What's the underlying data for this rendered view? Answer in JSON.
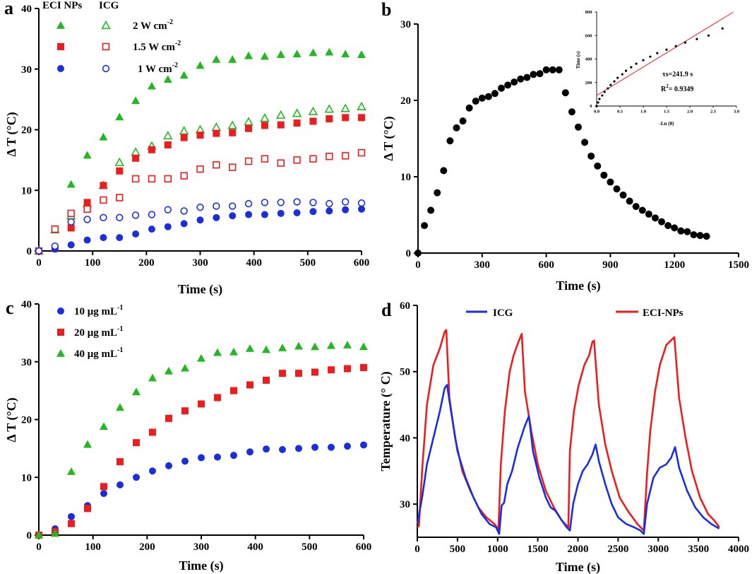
{
  "chart_data": [
    {
      "type": "scatter",
      "panel": "a",
      "xlabel": "Time (s)",
      "ylabel": "Δ T (°C)",
      "xlim": [
        0,
        600
      ],
      "ylim": [
        0,
        40
      ],
      "xticks": [
        0,
        100,
        200,
        300,
        400,
        500,
        600
      ],
      "yticks": [
        0,
        10,
        20,
        30,
        40
      ],
      "legend_headers": [
        "ECI NPs",
        "ICG"
      ],
      "legend_rows": [
        "2 W cm",
        "1.5 W cm",
        "1 W cm"
      ],
      "legend_sup": "-2",
      "x": [
        0,
        30,
        60,
        90,
        120,
        150,
        180,
        210,
        240,
        270,
        300,
        330,
        360,
        390,
        420,
        450,
        480,
        510,
        540,
        570,
        600
      ],
      "series": [
        {
          "name": "ECI NPs 2 W cm-2",
          "marker": "triangle",
          "filled": true,
          "color": "#22b822",
          "values": [
            0,
            3.6,
            11.0,
            15.8,
            18.8,
            22.1,
            24.8,
            27.2,
            28.3,
            29.0,
            30.6,
            31.6,
            31.6,
            32.2,
            32.1,
            32.4,
            32.5,
            32.7,
            32.8,
            32.5,
            32.4
          ]
        },
        {
          "name": "ICG 2 W cm-2",
          "marker": "triangle",
          "filled": false,
          "color": "#22b822",
          "values": [
            0,
            3.5,
            5.8,
            7.8,
            10.8,
            14.6,
            16.3,
            17.3,
            19.0,
            19.8,
            20.0,
            20.4,
            20.7,
            21.3,
            21.9,
            22.4,
            22.7,
            23.0,
            23.4,
            23.5,
            23.8
          ]
        },
        {
          "name": "ECI NPs 1.5 W cm-2",
          "marker": "square",
          "filled": true,
          "color": "#ee1c1c",
          "values": [
            0,
            0.4,
            3.8,
            8.0,
            10.8,
            13.2,
            15.3,
            16.7,
            17.5,
            18.7,
            19.1,
            19.4,
            19.5,
            20.2,
            20.7,
            20.8,
            21.1,
            21.4,
            21.8,
            22.0,
            22.0
          ]
        },
        {
          "name": "ICG 1.5 W cm-2",
          "marker": "square",
          "filled": false,
          "color": "#ee1c1c",
          "values": [
            0,
            3.6,
            6.2,
            6.9,
            8.4,
            8.8,
            11.9,
            11.9,
            11.9,
            12.4,
            13.5,
            14.2,
            13.8,
            14.8,
            15.2,
            14.5,
            15.0,
            15.2,
            15.6,
            15.7,
            16.2
          ]
        },
        {
          "name": "ECI NPs 1 W cm-2",
          "marker": "circle",
          "filled": true,
          "color": "#1a2ee0",
          "values": [
            0,
            0.3,
            1.0,
            1.8,
            2.2,
            2.2,
            2.8,
            3.6,
            4.0,
            4.5,
            5.1,
            5.5,
            5.8,
            6.0,
            6.0,
            6.2,
            6.3,
            6.5,
            6.6,
            6.8,
            6.9
          ]
        },
        {
          "name": "ICG 1 W cm-2",
          "marker": "circle",
          "filled": false,
          "color": "#1a2ee0",
          "values": [
            0,
            0.8,
            4.8,
            5.2,
            5.5,
            5.5,
            5.9,
            6.0,
            6.8,
            6.6,
            7.2,
            7.4,
            7.4,
            7.8,
            8.0,
            8.0,
            8.1,
            8.0,
            7.8,
            8.1,
            7.9
          ]
        }
      ]
    },
    {
      "type": "scatter",
      "panel": "b",
      "xlabel": "Time (s)",
      "ylabel": "Δ T (°C)",
      "xlim": [
        0,
        1500
      ],
      "ylim": [
        0,
        30
      ],
      "xticks": [
        0,
        300,
        600,
        900,
        1200,
        1500
      ],
      "yticks": [
        0,
        10,
        20,
        30
      ],
      "color": "#000000",
      "x": [
        0,
        30,
        60,
        90,
        120,
        150,
        180,
        210,
        240,
        270,
        300,
        330,
        360,
        390,
        420,
        450,
        480,
        510,
        540,
        570,
        600,
        630,
        660,
        690,
        720,
        750,
        780,
        810,
        840,
        870,
        900,
        930,
        960,
        990,
        1020,
        1050,
        1080,
        1110,
        1140,
        1170,
        1200,
        1230,
        1260,
        1290,
        1320,
        1350
      ],
      "values": [
        0,
        3.6,
        5.6,
        7.9,
        10.8,
        14.7,
        16.4,
        17.3,
        19.0,
        19.9,
        20.3,
        20.5,
        20.9,
        21.6,
        22.0,
        22.4,
        22.8,
        23.0,
        23.4,
        23.5,
        24.0,
        24.0,
        24.0,
        21.0,
        18.5,
        16.5,
        14.5,
        12.7,
        11.4,
        10.2,
        9.3,
        8.4,
        7.6,
        6.8,
        6.1,
        5.6,
        5.1,
        4.6,
        4.1,
        3.6,
        3.3,
        2.9,
        2.8,
        2.4,
        2.3,
        2.2
      ],
      "inset": {
        "xlabel": "-Ln (θ)",
        "ylabel": "Time (s)",
        "xlim": [
          0,
          3.0
        ],
        "ylim": [
          0,
          800
        ],
        "xticks": [
          "0.0",
          "0.5",
          "1.0",
          "1.5",
          "2.0",
          "2.5",
          "3.0"
        ],
        "yticks": [
          "0",
          "200",
          "400",
          "600",
          "800"
        ],
        "fit_line": {
          "intercept": 90,
          "slope": 241.9,
          "color": "#ee1c1c"
        },
        "x": [
          0.0,
          0.03,
          0.06,
          0.12,
          0.17,
          0.24,
          0.3,
          0.38,
          0.45,
          0.55,
          0.63,
          0.74,
          0.85,
          1.0,
          1.15,
          1.3,
          1.5,
          1.7,
          1.9,
          2.15,
          2.4,
          2.7
        ],
        "values": [
          0,
          30,
          60,
          90,
          120,
          150,
          180,
          210,
          240,
          270,
          300,
          330,
          360,
          390,
          420,
          450,
          480,
          510,
          540,
          570,
          600,
          660
        ],
        "annotation_tau": "τs=241.9 s",
        "annotation_r2": "R",
        "annotation_r2_sup": "2",
        "annotation_r2_value": "= 0.9349"
      }
    },
    {
      "type": "scatter",
      "panel": "c",
      "xlabel": "Time (s)",
      "ylabel": "Δ T (°C)",
      "xlim": [
        0,
        600
      ],
      "ylim": [
        0,
        40
      ],
      "xticks": [
        0,
        100,
        200,
        300,
        400,
        500,
        600
      ],
      "yticks": [
        0,
        10,
        20,
        30,
        40
      ],
      "x": [
        0,
        30,
        60,
        90,
        120,
        150,
        180,
        210,
        240,
        270,
        300,
        330,
        360,
        390,
        420,
        450,
        480,
        510,
        540,
        570,
        600
      ],
      "series": [
        {
          "name": "10 μg mL",
          "sup": "-1",
          "marker": "circle",
          "filled": true,
          "color": "#1a2ee0",
          "values": [
            0,
            1.1,
            3.2,
            5.1,
            7.2,
            8.7,
            10.0,
            11.1,
            12.0,
            12.8,
            13.4,
            13.5,
            13.8,
            14.4,
            14.9,
            14.8,
            15.0,
            15.2,
            15.2,
            15.4,
            15.6
          ]
        },
        {
          "name": "20 μg mL",
          "sup": "-1",
          "marker": "square",
          "filled": true,
          "color": "#ee1c1c",
          "values": [
            0,
            0.6,
            2.0,
            4.6,
            8.4,
            12.7,
            16.0,
            17.8,
            20.2,
            21.5,
            22.7,
            23.8,
            25.0,
            26.0,
            26.8,
            28.0,
            28.0,
            28.2,
            28.6,
            28.8,
            29.0
          ]
        },
        {
          "name": "40 μg mL",
          "sup": "-1",
          "marker": "triangle",
          "filled": true,
          "color": "#22b822",
          "values": [
            0,
            0.3,
            11.0,
            15.7,
            18.8,
            22.1,
            24.8,
            27.2,
            28.4,
            28.9,
            30.6,
            31.6,
            31.7,
            32.3,
            32.1,
            32.4,
            32.7,
            32.6,
            32.8,
            32.9,
            32.6
          ]
        }
      ]
    },
    {
      "type": "line",
      "panel": "d",
      "xlabel": "Time (s)",
      "ylabel": "Temperature (° C)",
      "xlim": [
        0,
        4000
      ],
      "ylim": [
        25,
        60
      ],
      "xticks": [
        0,
        500,
        1000,
        1500,
        2000,
        2500,
        3000,
        3500,
        4000
      ],
      "yticks": [
        30,
        40,
        50,
        60
      ],
      "series": [
        {
          "name": "ICG",
          "color": "#1a2ee0",
          "points": [
            [
              0,
              27
            ],
            [
              60,
              31
            ],
            [
              120,
              36
            ],
            [
              200,
              40
            ],
            [
              280,
              44
            ],
            [
              340,
              47.5
            ],
            [
              370,
              48
            ],
            [
              420,
              44
            ],
            [
              500,
              38
            ],
            [
              600,
              34
            ],
            [
              700,
              31
            ],
            [
              800,
              28.5
            ],
            [
              900,
              27
            ],
            [
              980,
              26.5
            ],
            [
              1020,
              25.5
            ],
            [
              1050,
              29.8
            ],
            [
              1080,
              30.2
            ],
            [
              1120,
              33
            ],
            [
              1180,
              35
            ],
            [
              1250,
              38.5
            ],
            [
              1330,
              41.5
            ],
            [
              1390,
              43.3
            ],
            [
              1440,
              38
            ],
            [
              1520,
              34
            ],
            [
              1600,
              31
            ],
            [
              1660,
              29.5
            ],
            [
              1720,
              29
            ],
            [
              1800,
              27.5
            ],
            [
              1860,
              26.5
            ],
            [
              1900,
              26
            ],
            [
              1940,
              30
            ],
            [
              2000,
              33
            ],
            [
              2060,
              35
            ],
            [
              2120,
              36
            ],
            [
              2180,
              37.5
            ],
            [
              2220,
              39
            ],
            [
              2260,
              36.5
            ],
            [
              2340,
              33
            ],
            [
              2420,
              30
            ],
            [
              2500,
              28
            ],
            [
              2600,
              27
            ],
            [
              2700,
              26.5
            ],
            [
              2780,
              26
            ],
            [
              2820,
              25.5
            ],
            [
              2860,
              30
            ],
            [
              2940,
              34
            ],
            [
              3020,
              35.5
            ],
            [
              3100,
              36
            ],
            [
              3160,
              37
            ],
            [
              3210,
              38.6
            ],
            [
              3260,
              35.5
            ],
            [
              3360,
              32
            ],
            [
              3460,
              29.5
            ],
            [
              3560,
              28
            ],
            [
              3660,
              27
            ],
            [
              3760,
              26.3
            ]
          ]
        },
        {
          "name": "ECI-NPs",
          "color": "#ee1c1c",
          "points": [
            [
              0,
              26.5
            ],
            [
              20,
              26.7
            ],
            [
              60,
              35
            ],
            [
              120,
              45
            ],
            [
              200,
              51
            ],
            [
              280,
              53.5
            ],
            [
              340,
              56
            ],
            [
              360,
              56.3
            ],
            [
              400,
              46
            ],
            [
              470,
              40
            ],
            [
              560,
              35
            ],
            [
              660,
              32
            ],
            [
              760,
              29.5
            ],
            [
              860,
              28
            ],
            [
              960,
              27
            ],
            [
              1010,
              26.2
            ],
            [
              1040,
              36
            ],
            [
              1090,
              44
            ],
            [
              1150,
              50
            ],
            [
              1200,
              52.5
            ],
            [
              1260,
              54.5
            ],
            [
              1300,
              55.7
            ],
            [
              1340,
              47
            ],
            [
              1420,
              41
            ],
            [
              1500,
              36
            ],
            [
              1600,
              32
            ],
            [
              1700,
              29.5
            ],
            [
              1800,
              27.5
            ],
            [
              1880,
              26.5
            ],
            [
              1900,
              38
            ],
            [
              1950,
              44
            ],
            [
              2010,
              48
            ],
            [
              2080,
              51
            ],
            [
              2140,
              52.5
            ],
            [
              2180,
              54.5
            ],
            [
              2200,
              54.7
            ],
            [
              2260,
              45
            ],
            [
              2340,
              39
            ],
            [
              2420,
              35
            ],
            [
              2520,
              31
            ],
            [
              2620,
              29
            ],
            [
              2740,
              27
            ],
            [
              2820,
              26
            ],
            [
              2860,
              34.5
            ],
            [
              2900,
              41
            ],
            [
              2960,
              47
            ],
            [
              3020,
              51
            ],
            [
              3100,
              54
            ],
            [
              3140,
              54.5
            ],
            [
              3200,
              55.2
            ],
            [
              3260,
              46
            ],
            [
              3340,
              40
            ],
            [
              3420,
              35
            ],
            [
              3520,
              31
            ],
            [
              3620,
              28.5
            ],
            [
              3700,
              27.5
            ],
            [
              3760,
              26.5
            ]
          ]
        }
      ]
    }
  ],
  "panels": {
    "a": {
      "letter": "a"
    },
    "b": {
      "letter": "b"
    },
    "c": {
      "letter": "c"
    },
    "d": {
      "letter": "d"
    }
  }
}
